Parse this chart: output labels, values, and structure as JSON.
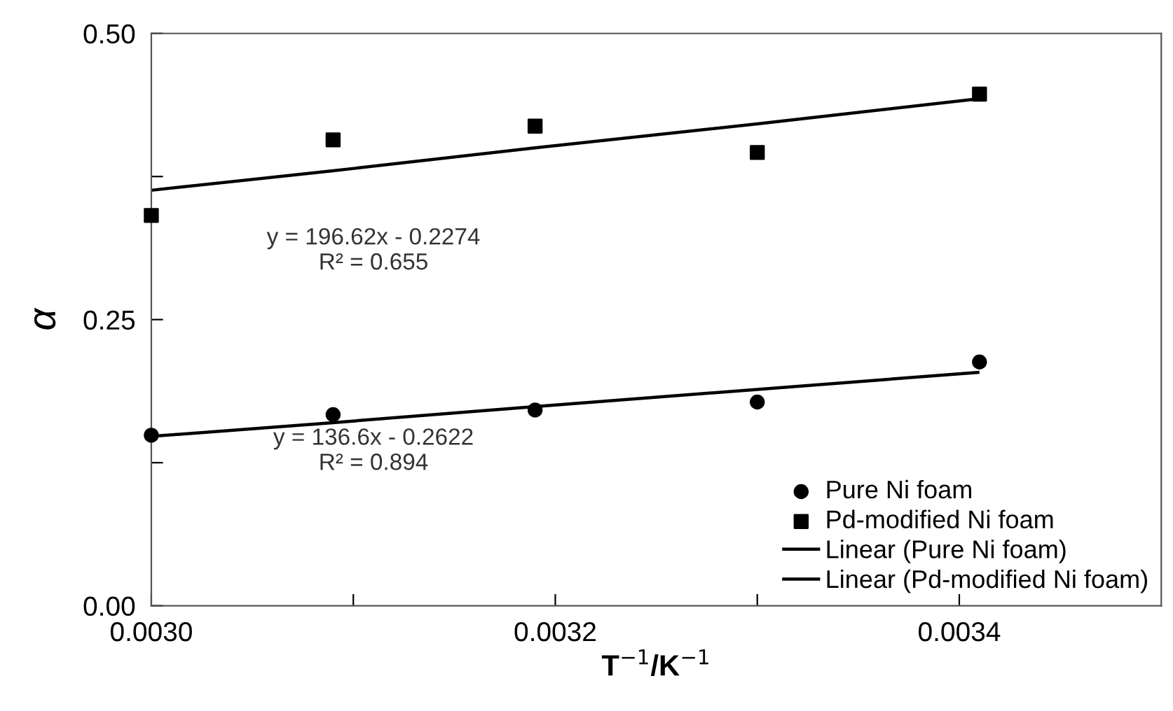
{
  "chart_data": {
    "type": "scatter",
    "xlabel": "T$^{−1}$/K$^{−1}$",
    "ylabel": "α",
    "x": [
      0.003,
      0.00309,
      0.00319,
      0.0033,
      0.00341
    ],
    "series": [
      {
        "name": "Pure Ni foam",
        "color": "#000000",
        "marker": "circle",
        "values": [
          0.149,
          0.167,
          0.171,
          0.178,
          0.213
        ]
      },
      {
        "name": "Pd-modified Ni foam",
        "color": "#000000",
        "marker": "square",
        "values": [
          0.341,
          0.407,
          0.419,
          0.396,
          0.447
        ]
      },
      {
        "name": "Linear (Pure Ni foam)",
        "type": "line",
        "color": "#000000",
        "line_style": "solid",
        "values": [
          0.148,
          0.16,
          0.174,
          0.189,
          0.204
        ]
      },
      {
        "name": "Linear (Pd-modified Ni foam)",
        "type": "line",
        "color": "#000000",
        "line_style": "solid",
        "values": [
          0.363,
          0.38,
          0.4,
          0.421,
          0.443
        ]
      }
    ],
    "annotations": [
      "y = 196.62x - 0.2274\nR² = 0.655",
      "y = 136.6x - 0.2622\nR² = 0.894"
    ],
    "xlim": [
      0.003,
      0.0035
    ],
    "ylim": [
      0.0,
      0.5
    ],
    "xticks": [
      {
        "value": 0.003,
        "label": "0.0030"
      },
      {
        "value": 0.0031,
        "label": null
      },
      {
        "value": 0.0032,
        "label": "0.0032"
      },
      {
        "value": 0.0033,
        "label": null
      },
      {
        "value": 0.0034,
        "label": "0.0034"
      }
    ],
    "yticks": [
      {
        "value": 0.0,
        "label": "0.00"
      },
      {
        "value": 0.125,
        "label": null
      },
      {
        "value": 0.25,
        "label": "0.25"
      },
      {
        "value": 0.375,
        "label": null
      },
      {
        "value": 0.5,
        "label": "0.50"
      }
    ],
    "grid": false,
    "legend": "bottom right"
  }
}
